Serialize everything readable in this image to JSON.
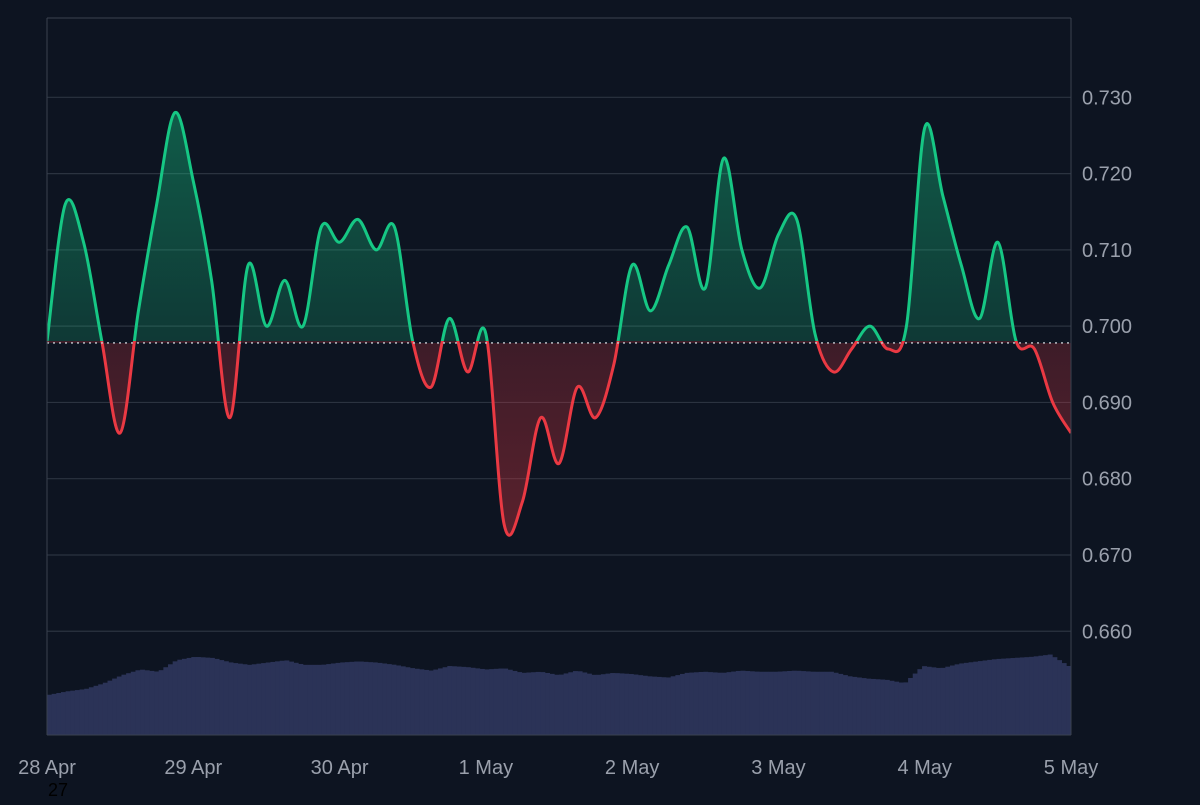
{
  "colors": {
    "background": "#0d1421",
    "grid": "#2b3340",
    "frame": "#3a4250",
    "above": "#16c784",
    "below": "#ea3943",
    "baseline": "#c8ccd3",
    "volume": "#2b3357",
    "tick_text": "#9aa0ac",
    "corner_text": "#000000"
  },
  "chart_data": {
    "type": "line",
    "title": "",
    "xlabel": "",
    "ylabel": "",
    "x_ticks": [
      "28 Apr",
      "29 Apr",
      "30 Apr",
      "1 May",
      "2 May",
      "3 May",
      "4 May",
      "5 May"
    ],
    "y_ticks": [
      "0.730",
      "0.720",
      "0.710",
      "0.700",
      "0.690",
      "0.680",
      "0.670",
      "0.660"
    ],
    "ylim": [
      0.6464,
      0.7404
    ],
    "baseline": 0.6978,
    "above_color": "#16c784",
    "below_color": "#ea3943",
    "grid": true,
    "series": [
      {
        "x": [
          "28 Apr 00:00",
          "28 Apr 03:00",
          "28 Apr 06:00",
          "28 Apr 09:00",
          "28 Apr 12:00",
          "28 Apr 15:00",
          "28 Apr 18:00",
          "28 Apr 21:00",
          "29 Apr 00:00",
          "29 Apr 03:00",
          "29 Apr 06:00",
          "29 Apr 09:00",
          "29 Apr 12:00",
          "29 Apr 15:00",
          "29 Apr 18:00",
          "29 Apr 21:00",
          "30 Apr 00:00",
          "30 Apr 03:00",
          "30 Apr 06:00",
          "30 Apr 09:00",
          "30 Apr 12:00",
          "30 Apr 15:00",
          "30 Apr 18:00",
          "30 Apr 21:00",
          "1 May 00:00",
          "1 May 03:00",
          "1 May 06:00",
          "1 May 09:00",
          "1 May 12:00",
          "1 May 15:00",
          "1 May 18:00",
          "1 May 21:00",
          "2 May 00:00",
          "2 May 03:00",
          "2 May 06:00",
          "2 May 09:00",
          "2 May 12:00",
          "2 May 15:00",
          "2 May 18:00",
          "2 May 21:00",
          "3 May 00:00",
          "3 May 03:00",
          "3 May 06:00",
          "3 May 09:00",
          "3 May 12:00",
          "3 May 15:00",
          "3 May 18:00",
          "3 May 21:00",
          "4 May 00:00",
          "4 May 03:00",
          "4 May 06:00",
          "4 May 09:00",
          "4 May 12:00",
          "4 May 15:00",
          "4 May 18:00",
          "4 May 21:00",
          "5 May 00:00"
        ],
        "values": [
          0.698,
          0.716,
          0.711,
          0.698,
          0.686,
          0.702,
          0.716,
          0.728,
          0.719,
          0.706,
          0.688,
          0.708,
          0.7,
          0.706,
          0.7,
          0.713,
          0.711,
          0.714,
          0.71,
          0.713,
          0.698,
          0.692,
          0.701,
          0.694,
          0.699,
          0.674,
          0.677,
          0.688,
          0.682,
          0.692,
          0.688,
          0.695,
          0.708,
          0.702,
          0.708,
          0.713,
          0.705,
          0.722,
          0.71,
          0.705,
          0.712,
          0.714,
          0.699,
          0.694,
          0.697,
          0.7,
          0.697,
          0.7,
          0.726,
          0.717,
          0.708,
          0.701,
          0.711,
          0.698,
          0.697,
          0.69,
          0.686
        ],
        "volume": [
          35,
          38,
          40,
          45,
          52,
          57,
          55,
          65,
          68,
          67,
          63,
          61,
          63,
          65,
          61,
          61,
          63,
          64,
          63,
          61,
          58,
          56,
          60,
          59,
          57,
          58,
          54,
          55,
          52,
          56,
          52,
          54,
          53,
          51,
          50,
          54,
          55,
          54,
          56,
          55,
          55,
          56,
          55,
          55,
          51,
          49,
          48,
          45,
          60,
          58,
          62,
          64,
          66,
          67,
          68,
          70,
          60
        ]
      }
    ],
    "volume_max": 100
  },
  "footer_text": "27"
}
